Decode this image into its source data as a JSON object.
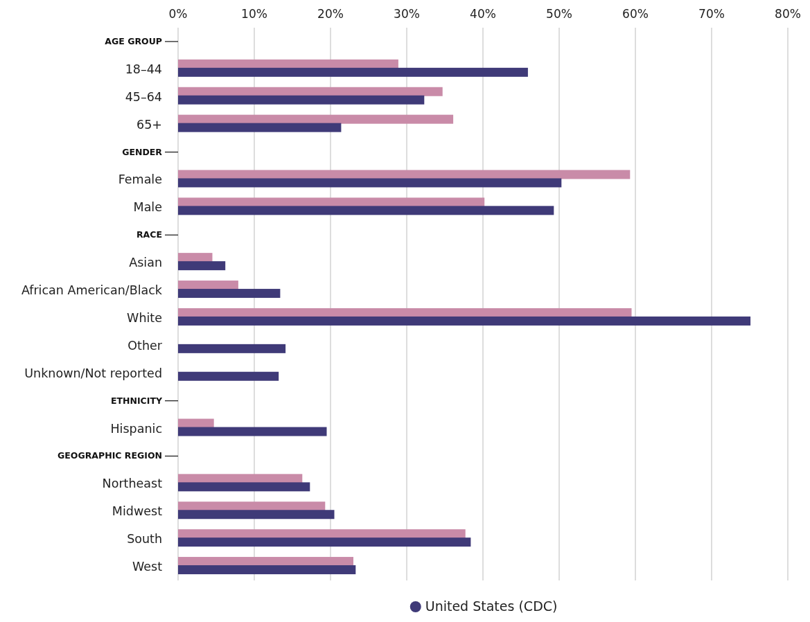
{
  "chart_data": {
    "type": "bar",
    "orientation": "horizontal",
    "categories": [
      "AGE GROUP",
      "18–44",
      "45–64",
      "65+",
      "GENDER",
      "Female",
      "Male",
      "RACE",
      "Asian",
      "African American/Black",
      "White",
      "Other",
      "Unknown/Not reported",
      "ETHNICITY",
      "Hispanic",
      "GEOGRAPHIC REGION",
      "Northeast",
      "Midwest",
      "South",
      "West"
    ],
    "series": [
      {
        "color": "#c98ba8",
        "values": [
          null,
          28.9,
          34.7,
          36.1,
          null,
          59.3,
          40.2,
          null,
          4.5,
          7.9,
          59.5,
          null,
          null,
          null,
          4.7,
          null,
          16.3,
          19.3,
          37.7,
          23.0
        ]
      },
      {
        "name": "United States (CDC)",
        "color": "#3f3a78",
        "values": [
          null,
          45.9,
          32.3,
          21.4,
          null,
          50.3,
          49.3,
          null,
          6.2,
          13.4,
          75.1,
          14.1,
          13.2,
          null,
          19.5,
          null,
          17.3,
          20.5,
          38.4,
          23.3
        ]
      }
    ],
    "xlim": [
      0,
      80
    ],
    "xticks": [
      {
        "value": 0,
        "label": "0%"
      },
      {
        "value": 10,
        "label": "10%"
      },
      {
        "value": 20,
        "label": "20%"
      },
      {
        "value": 30,
        "label": "30%"
      },
      {
        "value": 40,
        "label": "40%"
      },
      {
        "value": 50,
        "label": "50%"
      },
      {
        "value": 60,
        "label": "60%"
      },
      {
        "value": 70,
        "label": "70%"
      },
      {
        "value": 80,
        "label": "80%"
      }
    ],
    "grid": "x",
    "legend": "bottom"
  }
}
